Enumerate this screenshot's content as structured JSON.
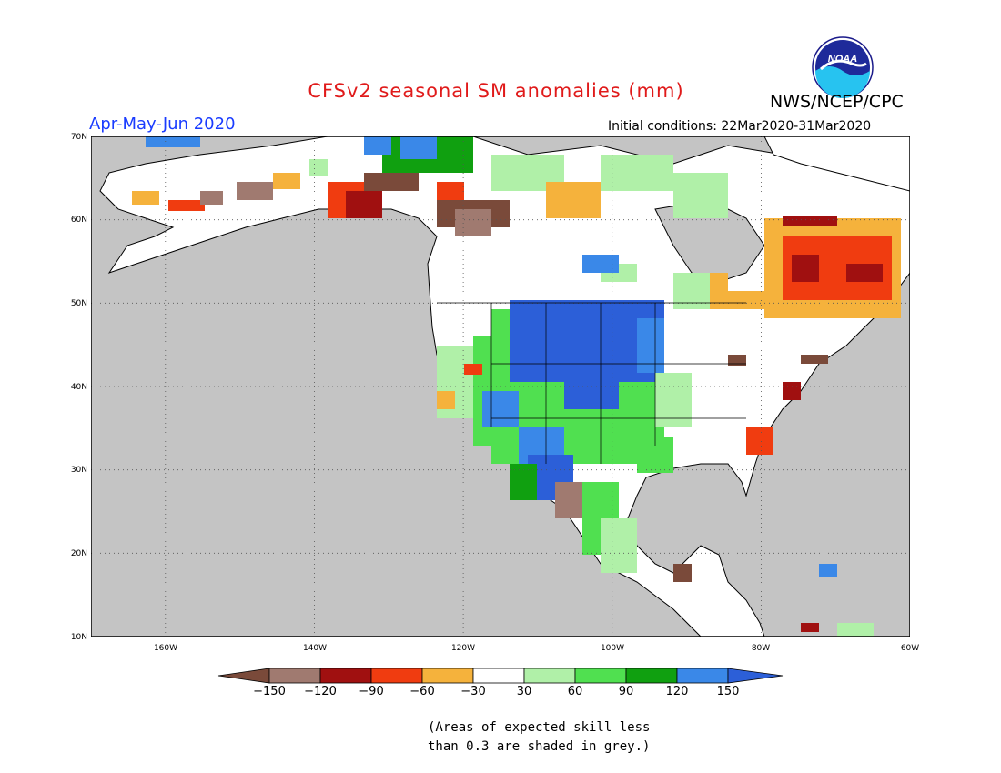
{
  "header": {
    "title": "CFSv2 seasonal SM anomalies (mm)",
    "agency": "NWS/NCEP/CPC",
    "period": "Apr-May-Jun 2020",
    "initial_conditions": "Initial conditions: 22Mar2020-31Mar2020",
    "logo_text": "NOAA"
  },
  "axes": {
    "lat_labels": [
      "70N",
      "60N",
      "50N",
      "40N",
      "30N",
      "20N",
      "10N"
    ],
    "lon_labels": [
      "160W",
      "140W",
      "120W",
      "100W",
      "80W",
      "60W"
    ]
  },
  "legend": {
    "tick_labels": [
      "-150",
      "-120",
      "-90",
      "-60",
      "-30",
      "30",
      "60",
      "90",
      "120",
      "150"
    ],
    "colors": [
      "#7a4a3a",
      "#a07a70",
      "#a01010",
      "#f03c10",
      "#f5b23c",
      "#ffffff",
      "#b0f0a8",
      "#50e050",
      "#10a010",
      "#3a88e8",
      "#2c5fd8"
    ]
  },
  "colors": {
    "grey_mask": "#c4c4c4",
    "title": "#e01a1a",
    "period": "#1a3cff"
  },
  "footnote": {
    "line1": "(Areas of expected skill less",
    "line2": "than 0.3 are shaded in grey.)"
  }
}
